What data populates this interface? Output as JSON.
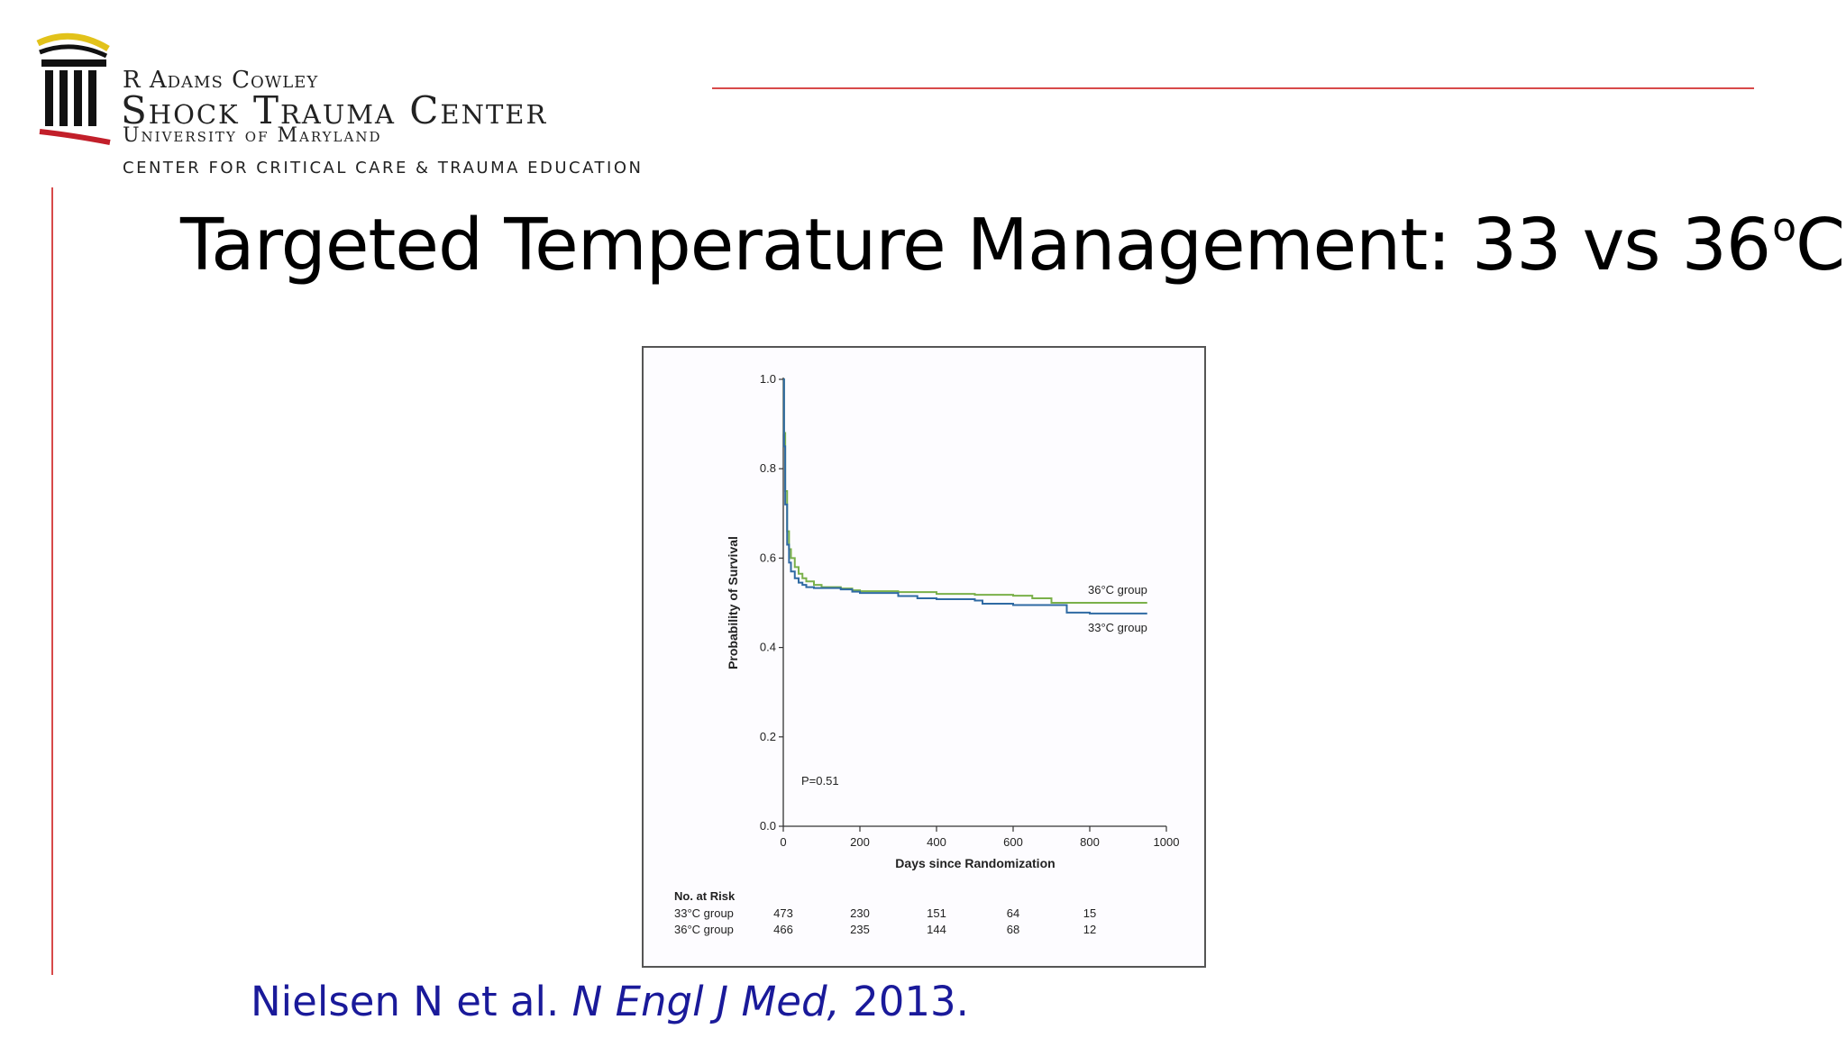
{
  "logo": {
    "line1": "R Adams Cowley",
    "line2": "Shock Trauma Center",
    "line3": "University of Maryland",
    "line4": "Center for Critical Care & Trauma Education"
  },
  "slide": {
    "title_main": "Targeted Temperature Management: 33 vs 36",
    "title_sup": "o",
    "title_unit": "C",
    "citation_authors": "Nielsen N et al. ",
    "citation_journal": "N Engl J Med,",
    "citation_year": " 2013."
  },
  "colors": {
    "accent_rule": "#d84a4a",
    "citation_text": "#1a1a9a",
    "series_33": "#2f6aa3",
    "series_36": "#7ab04a"
  },
  "chart_data": {
    "type": "line",
    "title": "",
    "xlabel": "Days since Randomization",
    "ylabel": "Probability of Survival",
    "xlim": [
      0,
      1000
    ],
    "ylim": [
      0.0,
      1.0
    ],
    "x_ticks": [
      0,
      200,
      400,
      600,
      800,
      1000
    ],
    "y_ticks": [
      0.0,
      0.2,
      0.4,
      0.6,
      0.8,
      1.0
    ],
    "x_tick_labels": [
      "0",
      "200",
      "400",
      "600",
      "800",
      "1000"
    ],
    "y_tick_labels": [
      "0.0",
      "0.2",
      "0.4",
      "0.6",
      "0.8",
      "1.0"
    ],
    "annotation": "P=0.51",
    "series": [
      {
        "name": "36°C group",
        "color": "#7ab04a",
        "x": [
          0,
          2,
          5,
          10,
          15,
          20,
          30,
          40,
          50,
          60,
          80,
          100,
          150,
          180,
          200,
          300,
          400,
          500,
          600,
          650,
          700,
          800,
          950
        ],
        "y": [
          1.0,
          0.88,
          0.75,
          0.66,
          0.62,
          0.6,
          0.58,
          0.565,
          0.555,
          0.548,
          0.54,
          0.535,
          0.532,
          0.528,
          0.526,
          0.524,
          0.52,
          0.518,
          0.516,
          0.51,
          0.5,
          0.5,
          0.5
        ]
      },
      {
        "name": "33°C group",
        "color": "#2f6aa3",
        "x": [
          0,
          2,
          5,
          10,
          15,
          20,
          30,
          40,
          50,
          60,
          80,
          100,
          150,
          180,
          200,
          300,
          350,
          400,
          500,
          520,
          600,
          700,
          740,
          800,
          950
        ],
        "y": [
          1.0,
          0.85,
          0.72,
          0.63,
          0.59,
          0.57,
          0.555,
          0.545,
          0.54,
          0.535,
          0.533,
          0.533,
          0.53,
          0.525,
          0.522,
          0.515,
          0.51,
          0.508,
          0.505,
          0.498,
          0.495,
          0.495,
          0.478,
          0.476,
          0.476
        ]
      }
    ],
    "risk_table": {
      "header": "No. at Risk",
      "x": [
        0,
        200,
        400,
        600,
        800
      ],
      "rows": [
        {
          "label": "33°C group",
          "values": [
            "473",
            "230",
            "151",
            "64",
            "15"
          ]
        },
        {
          "label": "36°C group",
          "values": [
            "466",
            "235",
            "144",
            "68",
            "12"
          ]
        }
      ]
    }
  }
}
